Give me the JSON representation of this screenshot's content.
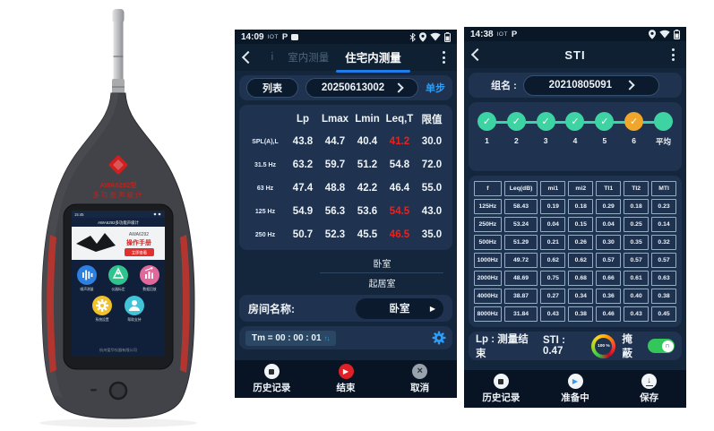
{
  "colors": {
    "accent_blue": "#2f9df5",
    "tab_underline_blue": "#1f7ce8",
    "alert_red": "#e8231f",
    "step_teal": "#3ed3a2",
    "step_orange": "#f0a62a",
    "toggle_green": "#33c759",
    "end_button_red": "#e02024",
    "phone_bg": "#14263c",
    "panel_bg": "#1f3350"
  },
  "icons": {
    "play": "▶",
    "close": "×",
    "down_arrow": "↓",
    "up_arrow": "↑",
    "check": "✓"
  },
  "device": {
    "model_line1": "AWA6292型",
    "model_line2": "多功能声级计",
    "screen": {
      "status_time": "15:45",
      "title": "AWA6292多功能声级计",
      "banner_model": "AWA6292",
      "banner_headline": "操作手册",
      "banner_button": "立即查看",
      "apps": [
        {
          "label": "噪声测量",
          "color": "#2e80e0",
          "icon": "sound-bars-icon"
        },
        {
          "label": "仪器标定",
          "color": "#2fc48e",
          "icon": "calibration-icon"
        },
        {
          "label": "数据回放",
          "color": "#e0689a",
          "icon": "bar-chart-icon"
        },
        {
          "label": "系统设置",
          "color": "#f0c12b",
          "icon": "gear-icon"
        },
        {
          "label": "帮助支持",
          "color": "#41c3d8",
          "icon": "support-person-icon"
        }
      ],
      "footer": "杭州爱华仪器有限公司"
    }
  },
  "phone1": {
    "status": {
      "time": "14:09",
      "carrier": "IOT",
      "badge": "P"
    },
    "header": {
      "partial_tab": "i",
      "tab_inactive": "室内测量",
      "tab_active": "住宅内测量"
    },
    "toolbar": {
      "list_button": "列表",
      "record_id": "20250613002",
      "mode": "单步"
    },
    "table": {
      "headers": [
        "Lp",
        "Lmax",
        "Lmin",
        "Leq,T",
        "限值"
      ],
      "rows": [
        {
          "label": "SPL(A),L",
          "values": [
            "43.8",
            "44.7",
            "40.4",
            "41.2",
            "30.0"
          ],
          "red": [
            3
          ]
        },
        {
          "label": "31.5 Hz",
          "values": [
            "63.2",
            "59.7",
            "51.2",
            "54.8",
            "72.0"
          ],
          "red": []
        },
        {
          "label": "63 Hz",
          "values": [
            "47.4",
            "48.8",
            "42.2",
            "46.4",
            "55.0"
          ],
          "red": []
        },
        {
          "label": "125 Hz",
          "values": [
            "54.9",
            "56.3",
            "53.6",
            "54.5",
            "43.0"
          ],
          "red": [
            3
          ]
        },
        {
          "label": "250 Hz",
          "values": [
            "50.7",
            "52.3",
            "45.5",
            "46.5",
            "35.0"
          ],
          "red": [
            3
          ]
        }
      ]
    },
    "room_options": [
      "卧室",
      "起居室"
    ],
    "room_row": {
      "label": "房间名称:",
      "selected": "卧室"
    },
    "timer": {
      "text": "Tm = 00 : 00 : 01"
    },
    "nav": {
      "history": "历史记录",
      "end": "结束",
      "cancel": "取消"
    }
  },
  "phone2": {
    "status": {
      "time": "14:38",
      "carrier": "IOT",
      "badge": "P"
    },
    "header": {
      "title": "STI"
    },
    "group": {
      "label": "组名 :",
      "value": "20210805091"
    },
    "stepper": {
      "steps": [
        "1",
        "2",
        "3",
        "4",
        "5",
        "6",
        "平均"
      ],
      "checked": [
        0,
        1,
        2,
        3,
        4,
        5
      ],
      "orange_index": 5
    },
    "table": {
      "headers": [
        "f",
        "Leq(dB)",
        "mi1",
        "mi2",
        "TI1",
        "TI2",
        "MTI"
      ],
      "rows": [
        [
          "125Hz",
          "58.43",
          "0.19",
          "0.18",
          "0.29",
          "0.18",
          "0.23"
        ],
        [
          "250Hz",
          "53.24",
          "0.04",
          "0.15",
          "0.04",
          "0.25",
          "0.14"
        ],
        [
          "500Hz",
          "51.29",
          "0.21",
          "0.26",
          "0.30",
          "0.35",
          "0.32"
        ],
        [
          "1000Hz",
          "49.72",
          "0.62",
          "0.62",
          "0.57",
          "0.57",
          "0.57"
        ],
        [
          "2000Hz",
          "48.69",
          "0.75",
          "0.68",
          "0.66",
          "0.61",
          "0.63"
        ],
        [
          "4000Hz",
          "38.87",
          "0.27",
          "0.34",
          "0.36",
          "0.40",
          "0.38"
        ],
        [
          "8000Hz",
          "31.84",
          "0.43",
          "0.38",
          "0.46",
          "0.43",
          "0.45"
        ]
      ]
    },
    "result": {
      "lp_label": "Lp : 测量结束",
      "sti_label": "STI : 0.47",
      "gauge_text": "100 %",
      "mask_label": "掩蔽"
    },
    "nav": {
      "history": "历史记录",
      "preparing": "准备中",
      "save": "保存"
    }
  }
}
